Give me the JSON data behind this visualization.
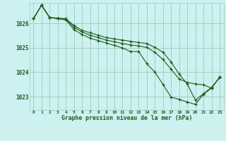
{
  "title": "Graphe pression niveau de la mer (hPa)",
  "bg_color": "#cdf0f0",
  "line_color": "#1a5c1a",
  "grid_color": "#99ccbb",
  "x_ticks": [
    0,
    1,
    2,
    3,
    4,
    5,
    6,
    7,
    8,
    9,
    10,
    11,
    12,
    13,
    14,
    15,
    16,
    17,
    18,
    19,
    20,
    21,
    22,
    23
  ],
  "y_ticks": [
    1023,
    1024,
    1025,
    1026
  ],
  "ylim": [
    1022.45,
    1026.85
  ],
  "xlim": [
    -0.5,
    23.5
  ],
  "series": [
    [
      1026.2,
      1026.75,
      1026.25,
      1026.2,
      1026.15,
      1025.75,
      1025.55,
      1025.4,
      1025.3,
      1025.2,
      1025.1,
      1025.0,
      1024.85,
      1024.85,
      1024.35,
      1024.0,
      1023.5,
      1022.98,
      1022.88,
      1022.78,
      1022.68,
      1023.1,
      1023.35,
      1023.8
    ],
    [
      1026.2,
      1026.75,
      1026.25,
      1026.2,
      1026.18,
      1025.85,
      1025.65,
      1025.52,
      1025.42,
      1025.32,
      1025.25,
      1025.18,
      1025.12,
      1025.08,
      1025.02,
      1024.82,
      1024.52,
      1024.12,
      1023.72,
      1023.58,
      1023.52,
      1023.48,
      1023.35,
      1023.8
    ],
    [
      1026.2,
      1026.75,
      1026.25,
      1026.22,
      1026.2,
      1025.92,
      1025.72,
      1025.62,
      1025.52,
      1025.42,
      1025.37,
      1025.32,
      1025.27,
      1025.22,
      1025.18,
      1025.02,
      1024.82,
      1024.42,
      1023.92,
      1023.52,
      1022.85,
      1023.12,
      1023.38,
      1023.78
    ]
  ]
}
